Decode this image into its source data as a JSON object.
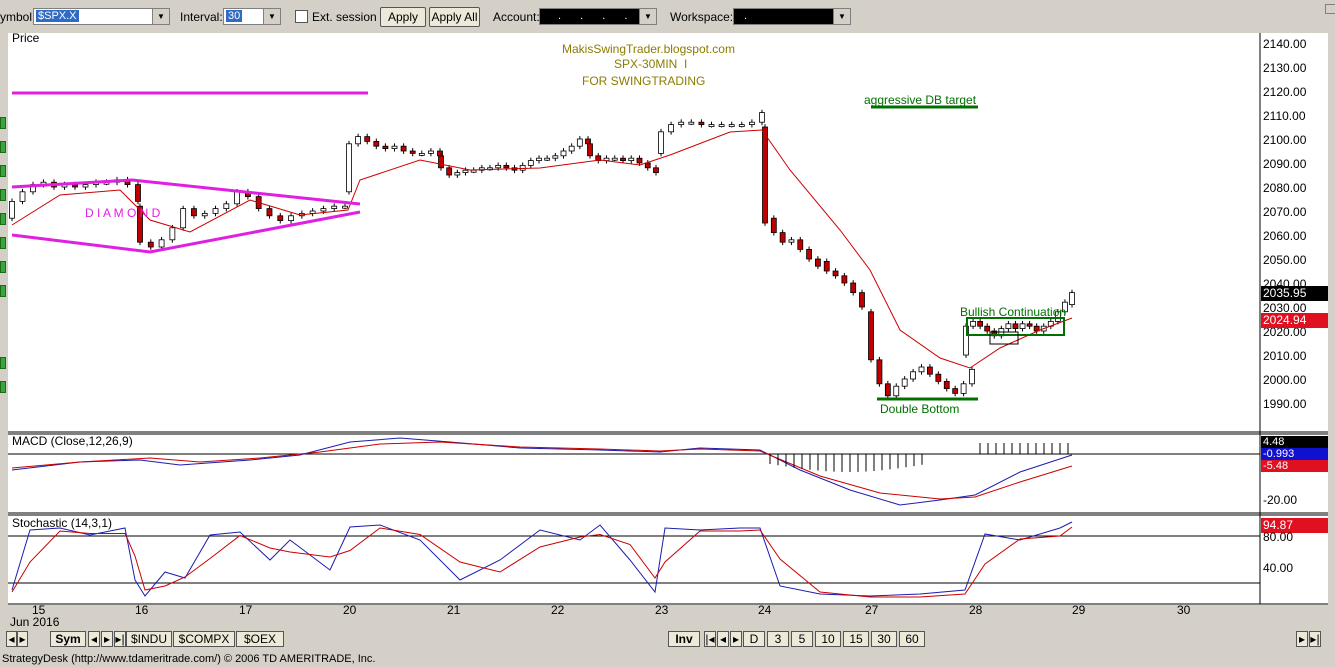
{
  "toolbar": {
    "symbol_label": "ymbol:",
    "symbol_value": "$SPX.X",
    "interval_label": "Interval:",
    "interval_value": "30",
    "ext_session_label": "Ext. session",
    "apply_label": "Apply",
    "apply_all_label": "Apply All",
    "account_label": "Account:",
    "account_value": ". . . .",
    "workspace_label": "Workspace:",
    "workspace_value": "."
  },
  "price_panel": {
    "title": "Price",
    "y_ticks": [
      "2140.00",
      "2130.00",
      "2120.00",
      "2110.00",
      "2100.00",
      "2090.00",
      "2080.00",
      "2070.00",
      "2060.00",
      "2050.00",
      "2040.00",
      "2030.00",
      "2020.00",
      "2010.00",
      "2000.00",
      "1990.00"
    ],
    "last_price": "2035.95",
    "ma_price": "2024.94",
    "annotations": {
      "watermark_1": "MakisSwingTrader.blogspot.com",
      "watermark_2": "SPX-30MIN  I",
      "watermark_3": "FOR SWINGTRADING",
      "db_target": "aggressive DB target",
      "bullish": "Bullish Continuation",
      "double_bottom": "Double Bottom",
      "diamond": "D I A M O N D"
    }
  },
  "macd_panel": {
    "title": "MACD (Close,12,26,9)",
    "values": [
      "4.48",
      "-0.993",
      "-5.48",
      "-20.00"
    ]
  },
  "stoch_panel": {
    "title": "Stochastic (14,3,1)",
    "last_value": "94.87",
    "levels": [
      "80.00",
      "40.00"
    ]
  },
  "x_axis": {
    "labels": [
      "15",
      "16",
      "17",
      "20",
      "21",
      "22",
      "23",
      "24",
      "27",
      "28",
      "29",
      "30"
    ],
    "month_label": "Jun 2016"
  },
  "bottom_tabs": {
    "sym": "Sym",
    "symbols": [
      "$INDU",
      "$COMPX",
      "$OEX"
    ],
    "inv": "Inv",
    "periods": [
      "D",
      "3",
      "5",
      "10",
      "15",
      "30",
      "60"
    ]
  },
  "status_text": "StrategyDesk (http://www.tdameritrade.com/) © 2006 TD AMERITRADE, Inc.",
  "colors": {
    "bullish_candle": "#ffffff",
    "bearish_candle": "#c00000",
    "ma_line": "#cc0000",
    "pattern": "#e020e0",
    "annotation_green": "#007000",
    "watermark": "#8b7d00",
    "macd_line": "#1c1cb0",
    "signal_line": "#cc0000"
  }
}
